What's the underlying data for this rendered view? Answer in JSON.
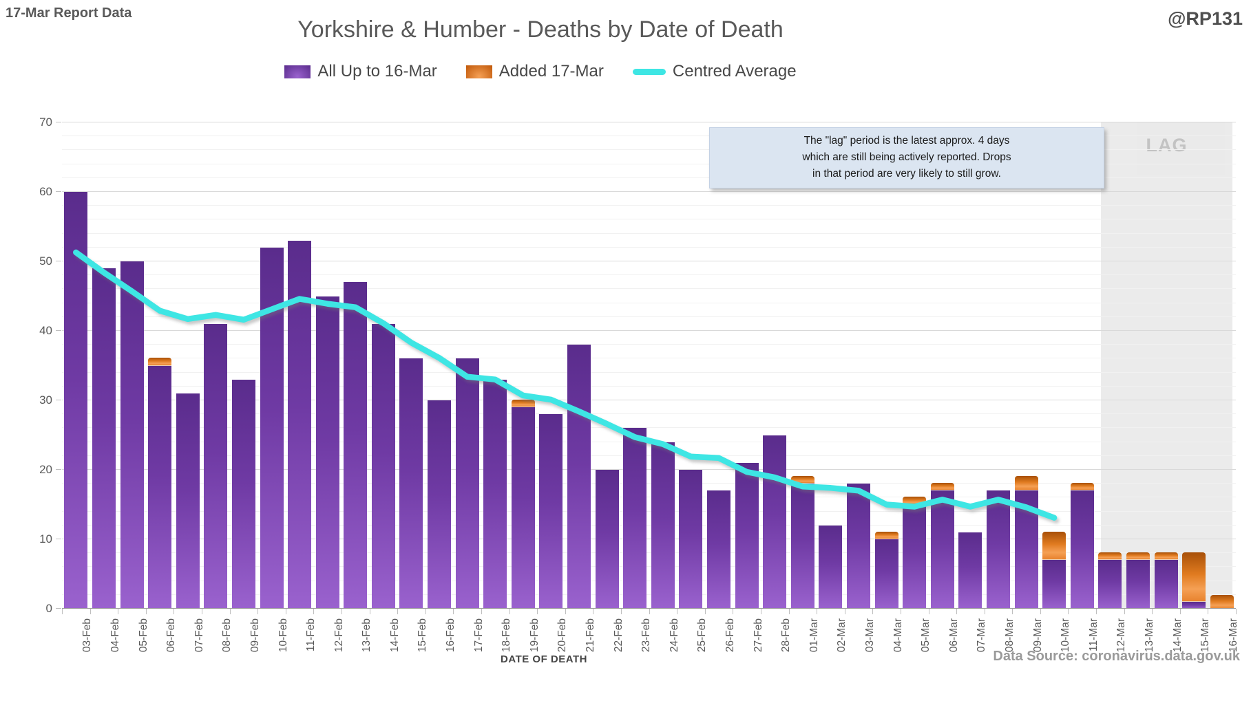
{
  "header": {
    "report_label": "17-Mar Report Data",
    "handle": "@RP131",
    "title": "Yorkshire & Humber - Deaths by Date of Death"
  },
  "annotation": {
    "line1": "The \"lag\" period is the latest approx. 4 days",
    "line2": "which are still being actively reported.  Drops",
    "line3": "in that period are very likely to still grow."
  },
  "footer": {
    "x_axis_title": "DATE OF DEATH",
    "data_source": "Data Source: coronavirus.data.gov.uk"
  },
  "chart_data": {
    "type": "bar",
    "stacked": true,
    "title": "Yorkshire & Humber - Deaths by Date of Death",
    "xlabel": "DATE OF DEATH",
    "ylabel": "",
    "ylim": [
      0,
      70
    ],
    "ytick_step": 10,
    "minor_grid_step": 2,
    "grid": true,
    "legend_position": "top",
    "categories": [
      "03-Feb",
      "04-Feb",
      "05-Feb",
      "06-Feb",
      "07-Feb",
      "08-Feb",
      "09-Feb",
      "10-Feb",
      "11-Feb",
      "12-Feb",
      "13-Feb",
      "14-Feb",
      "15-Feb",
      "16-Feb",
      "17-Feb",
      "18-Feb",
      "19-Feb",
      "20-Feb",
      "21-Feb",
      "22-Feb",
      "23-Feb",
      "24-Feb",
      "25-Feb",
      "26-Feb",
      "27-Feb",
      "28-Feb",
      "01-Mar",
      "02-Mar",
      "03-Mar",
      "04-Mar",
      "05-Mar",
      "06-Mar",
      "07-Mar",
      "08-Mar",
      "09-Mar",
      "10-Mar",
      "11-Mar",
      "12-Mar",
      "13-Mar",
      "14-Mar",
      "15-Mar",
      "16-Mar"
    ],
    "series": [
      {
        "name": "All Up to 16-Mar",
        "type": "bar",
        "color": "#5C2D91",
        "values": [
          60,
          49,
          50,
          35,
          31,
          41,
          33,
          52,
          53,
          45,
          47,
          41,
          36,
          30,
          36,
          33,
          29,
          28,
          38,
          20,
          26,
          24,
          20,
          17,
          21,
          25,
          18,
          12,
          18,
          10,
          15,
          17,
          11,
          17,
          17,
          7,
          17,
          7,
          7,
          7,
          1,
          0
        ]
      },
      {
        "name": "Added 17-Mar",
        "type": "bar",
        "color": "#ED7D31",
        "values": [
          0,
          0,
          0,
          1,
          0,
          0,
          0,
          0,
          0,
          0,
          0,
          0,
          0,
          0,
          0,
          0,
          1,
          0,
          0,
          0,
          0,
          0,
          0,
          0,
          0,
          0,
          1,
          0,
          0,
          1,
          1,
          1,
          0,
          0,
          2,
          4,
          1,
          1,
          1,
          1,
          7,
          2
        ]
      },
      {
        "name": "Centred Average",
        "type": "line",
        "color": "#3EE6E4",
        "values": [
          51.3,
          48.4,
          45.7,
          42.9,
          41.7,
          42.3,
          41.6,
          43.1,
          44.6,
          43.9,
          43.4,
          41.1,
          38.3,
          36.1,
          33.4,
          33.0,
          30.7,
          30.1,
          28.4,
          26.6,
          24.7,
          23.7,
          21.9,
          21.7,
          19.7,
          18.9,
          17.6,
          17.4,
          17.0,
          15.0,
          14.7,
          15.7,
          14.7,
          15.7,
          14.6,
          13.1,
          null,
          null,
          null,
          null,
          null,
          null
        ]
      }
    ],
    "lag_region": {
      "label": "LAG",
      "start_category": "12-Mar",
      "end_category": "16-Mar"
    }
  }
}
